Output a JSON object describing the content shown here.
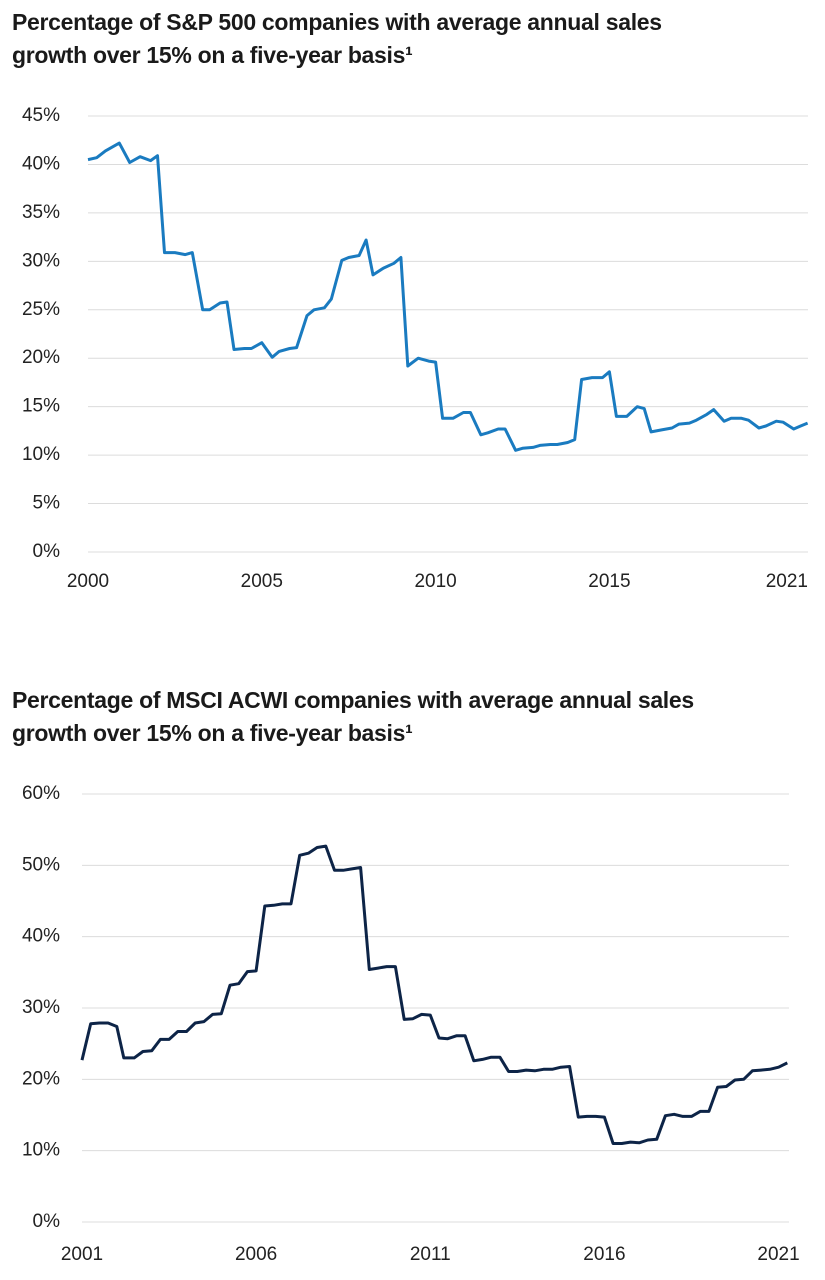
{
  "chart_data": [
    {
      "type": "line",
      "title": "Percentage of S&P 500 companies with average annual sales growth over 15% on a five-year basis¹",
      "color": "#1a7bc0",
      "grid": true,
      "x": [
        2000.0,
        2000.25,
        2000.5,
        2000.9,
        2001.2,
        2001.5,
        2001.8,
        2002.0,
        2002.2,
        2002.5,
        2002.8,
        2003.0,
        2003.3,
        2003.5,
        2003.8,
        2004.0,
        2004.2,
        2004.5,
        2004.7,
        2005.0,
        2005.3,
        2005.5,
        2005.8,
        2006.0,
        2006.3,
        2006.5,
        2006.8,
        2007.0,
        2007.3,
        2007.5,
        2007.8,
        2008.0,
        2008.2,
        2008.5,
        2008.8,
        2009.0,
        2009.2,
        2009.5,
        2009.8,
        2010.0,
        2010.2,
        2010.5,
        2010.8,
        2011.0,
        2011.3,
        2011.5,
        2011.8,
        2012.0,
        2012.3,
        2012.5,
        2012.8,
        2013.0,
        2013.3,
        2013.5,
        2013.8,
        2014.0,
        2014.2,
        2014.5,
        2014.8,
        2015.0,
        2015.2,
        2015.5,
        2015.8,
        2016.0,
        2016.2,
        2016.5,
        2016.8,
        2017.0,
        2017.3,
        2017.5,
        2017.8,
        2018.0,
        2018.3,
        2018.5,
        2018.8,
        2019.0,
        2019.3,
        2019.5,
        2019.8,
        2020.0,
        2020.3,
        2020.5,
        2020.7
      ],
      "values": [
        40.5,
        40.7,
        41.4,
        42.2,
        40.2,
        40.8,
        40.4,
        40.9,
        30.9,
        30.9,
        30.7,
        30.9,
        25.0,
        25.0,
        25.7,
        25.8,
        20.9,
        21.0,
        21.0,
        21.6,
        20.1,
        20.7,
        21.0,
        21.1,
        24.4,
        25.0,
        25.2,
        26.1,
        30.1,
        30.4,
        30.6,
        32.2,
        28.6,
        29.3,
        29.8,
        30.4,
        19.2,
        20.0,
        19.7,
        19.6,
        13.8,
        13.8,
        14.4,
        14.4,
        12.1,
        12.3,
        12.7,
        12.7,
        10.5,
        10.7,
        10.8,
        11.0,
        11.1,
        11.1,
        11.3,
        11.6,
        17.8,
        18.0,
        18.0,
        18.6,
        14.0,
        14.0,
        15.0,
        14.8,
        12.4,
        12.6,
        12.8,
        13.2,
        13.3,
        13.6,
        14.2,
        14.7,
        13.5,
        13.8,
        13.8,
        13.6,
        12.8,
        13.0,
        13.5,
        13.4,
        12.7,
        13.0,
        13.3
      ],
      "xlim": [
        2000,
        2021
      ],
      "xticks": [
        2000,
        2005,
        2010,
        2015,
        2021
      ],
      "ylim": [
        0,
        45
      ],
      "yticks": [
        {
          "value": 0,
          "label": "0%"
        },
        {
          "value": 5,
          "label": "5%"
        },
        {
          "value": 10,
          "label": "10%"
        },
        {
          "value": 15,
          "label": "15%"
        },
        {
          "value": 20,
          "label": "20%"
        },
        {
          "value": 25,
          "label": "25%"
        },
        {
          "value": 30,
          "label": "30%"
        },
        {
          "value": 35,
          "label": "35%"
        },
        {
          "value": 40,
          "label": "40%"
        },
        {
          "value": 45,
          "label": "45%"
        }
      ]
    },
    {
      "type": "line",
      "title": "Percentage of MSCI ACWI companies with average annual sales growth over 15% on a five-year basis¹",
      "color": "#0d2447",
      "grid": true,
      "x": [
        2001.0,
        2001.25,
        2001.5,
        2001.75,
        2002.0,
        2002.2,
        2002.5,
        2002.75,
        2003.0,
        2003.25,
        2003.5,
        2003.75,
        2004.0,
        2004.25,
        2004.5,
        2004.75,
        2005.0,
        2005.25,
        2005.5,
        2005.75,
        2006.0,
        2006.25,
        2006.5,
        2006.75,
        2007.0,
        2007.25,
        2007.5,
        2007.75,
        2008.0,
        2008.25,
        2008.5,
        2008.75,
        2009.0,
        2009.25,
        2009.5,
        2009.75,
        2010.0,
        2010.25,
        2010.5,
        2010.75,
        2011.0,
        2011.25,
        2011.5,
        2011.75,
        2012.0,
        2012.25,
        2012.5,
        2012.75,
        2013.0,
        2013.25,
        2013.5,
        2013.75,
        2014.0,
        2014.25,
        2014.5,
        2014.75,
        2015.0,
        2015.25,
        2015.5,
        2015.75,
        2016.0,
        2016.25,
        2016.5,
        2016.75,
        2017.0,
        2017.25,
        2017.5,
        2017.75,
        2018.0,
        2018.25,
        2018.5,
        2018.75,
        2019.0,
        2019.25,
        2019.5,
        2019.75,
        2020.0,
        2020.25,
        2020.5,
        2020.75,
        2021.0,
        2021.25
      ],
      "values": [
        22.7,
        27.8,
        27.9,
        27.9,
        27.4,
        23.0,
        23.0,
        23.9,
        24.0,
        25.6,
        25.6,
        26.7,
        26.7,
        27.9,
        28.1,
        29.1,
        29.2,
        33.2,
        33.4,
        35.1,
        35.2,
        44.3,
        44.4,
        44.6,
        44.6,
        51.4,
        51.7,
        52.5,
        52.7,
        49.3,
        49.3,
        49.5,
        49.7,
        35.4,
        35.6,
        35.8,
        35.8,
        28.4,
        28.5,
        29.1,
        29.0,
        25.8,
        25.7,
        26.1,
        26.1,
        22.6,
        22.8,
        23.1,
        23.1,
        21.1,
        21.1,
        21.3,
        21.2,
        21.4,
        21.4,
        21.7,
        21.8,
        14.7,
        14.8,
        14.8,
        14.7,
        11.0,
        11.0,
        11.2,
        11.1,
        11.5,
        11.6,
        14.9,
        15.1,
        14.8,
        14.8,
        15.5,
        15.5,
        18.9,
        19.0,
        19.9,
        20.0,
        21.2,
        21.3,
        21.4,
        21.7,
        22.3
      ],
      "xlim": [
        2001,
        2021.3
      ],
      "xticks": [
        2001,
        2006,
        2011,
        2016,
        2021
      ],
      "ylim": [
        0,
        60
      ],
      "yticks": [
        {
          "value": 0,
          "label": "0%"
        },
        {
          "value": 10,
          "label": "10%"
        },
        {
          "value": 20,
          "label": "20%"
        },
        {
          "value": 30,
          "label": "30%"
        },
        {
          "value": 40,
          "label": "40%"
        },
        {
          "value": 50,
          "label": "50%"
        },
        {
          "value": 60,
          "label": "60%"
        }
      ]
    }
  ]
}
